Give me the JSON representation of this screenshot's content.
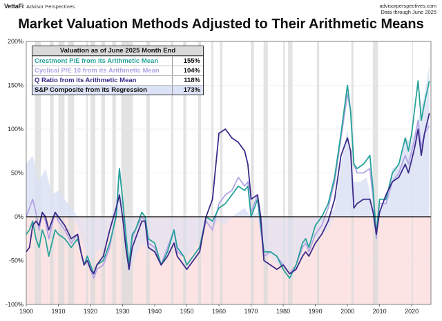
{
  "header": {
    "brand": "VettaFi",
    "brand_sub": "Advisor Perspectives",
    "source_line1": "advisorperspectives.com",
    "source_line2": "Data through June 2025"
  },
  "legend": {
    "header": "Valuation as of June 2025 Month End",
    "rows": [
      {
        "label": "Crestmont P/E from its Arithmetic Mean",
        "value": "155%",
        "color": "#26a39a"
      },
      {
        "label": "Cyclical P/E 10 from its Arithmetic Mean",
        "value": "104%",
        "color": "#b3a3e6"
      },
      {
        "label": "Q Ratio from its Arithmetic Mean",
        "value": "118%",
        "color": "#3b2a8a"
      },
      {
        "label": "S&P Composite from its Regression",
        "value": "173%",
        "color": "#111111"
      }
    ]
  },
  "colors": {
    "crestmont": "#26a39a",
    "pe10": "#b3a3e6",
    "q": "#3b2a8a",
    "composite_pos": "#dbe2f5",
    "composite_neg": "#fce4e4",
    "recession": "#d9d9d9",
    "zero_line": "#000000"
  },
  "chart_data": {
    "type": "line",
    "title": "Market Valuation Methods Adjusted to Their Arithmetic Means",
    "xlabel": "",
    "ylabel": "",
    "xlim": [
      1900,
      2026
    ],
    "ylim": [
      -100,
      200
    ],
    "x_ticks": [
      1900,
      1910,
      1920,
      1930,
      1940,
      1950,
      1960,
      1970,
      1980,
      1990,
      2000,
      2010,
      2020
    ],
    "y_ticks": [
      -100,
      -50,
      0,
      50,
      100,
      150,
      200
    ],
    "y_tick_labels": [
      "-100%",
      "-50%",
      "0%",
      "50%",
      "100%",
      "150%",
      "200%"
    ],
    "recessions": [
      [
        1902.7,
        1904.6
      ],
      [
        1907.4,
        1908.5
      ],
      [
        1910.0,
        1911.9
      ],
      [
        1913.0,
        1914.9
      ],
      [
        1918.7,
        1919.2
      ],
      [
        1920.0,
        1921.5
      ],
      [
        1923.4,
        1924.5
      ],
      [
        1926.8,
        1927.9
      ],
      [
        1929.6,
        1933.2
      ],
      [
        1937.4,
        1938.5
      ],
      [
        1945.1,
        1945.8
      ],
      [
        1948.9,
        1949.8
      ],
      [
        1953.5,
        1954.4
      ],
      [
        1957.6,
        1958.3
      ],
      [
        1960.3,
        1961.1
      ],
      [
        1969.9,
        1970.9
      ],
      [
        1973.9,
        1975.2
      ],
      [
        1980.0,
        1980.5
      ],
      [
        1981.5,
        1982.9
      ],
      [
        1990.5,
        1991.2
      ],
      [
        2001.2,
        2001.9
      ],
      [
        2007.9,
        2009.5
      ],
      [
        2020.1,
        2020.4
      ]
    ],
    "series": [
      {
        "name": "S&P Composite from its Regression",
        "kind": "area",
        "x": [
          1900,
          1902,
          1904,
          1906,
          1908,
          1910,
          1912,
          1914,
          1916,
          1918,
          1920,
          1922,
          1924,
          1926,
          1928,
          1929,
          1930,
          1932,
          1934,
          1936,
          1938,
          1940,
          1942,
          1944,
          1946,
          1948,
          1950,
          1952,
          1954,
          1956,
          1958,
          1960,
          1962,
          1964,
          1966,
          1968,
          1970,
          1972,
          1974,
          1976,
          1978,
          1980,
          1982,
          1984,
          1986,
          1988,
          1990,
          1992,
          1994,
          1996,
          1998,
          2000,
          2002,
          2004,
          2006,
          2008,
          2009,
          2010,
          2012,
          2014,
          2016,
          2018,
          2020,
          2022,
          2024,
          2025.5
        ],
        "values": [
          60,
          70,
          40,
          55,
          25,
          30,
          20,
          10,
          -10,
          -35,
          -50,
          -40,
          -35,
          -20,
          10,
          40,
          -10,
          -65,
          -45,
          -30,
          -35,
          -40,
          -55,
          -40,
          -30,
          -45,
          -45,
          -40,
          -25,
          -5,
          -10,
          -5,
          -10,
          0,
          5,
          10,
          -5,
          5,
          -40,
          -45,
          -55,
          -55,
          -60,
          -50,
          -35,
          -30,
          -25,
          -20,
          -15,
          10,
          60,
          100,
          40,
          40,
          45,
          10,
          -20,
          5,
          20,
          55,
          60,
          90,
          85,
          110,
          140,
          173
        ]
      },
      {
        "name": "Cyclical P/E 10 from its Arithmetic Mean",
        "kind": "line",
        "x": [
          1900,
          1901,
          1902,
          1903,
          1904,
          1905,
          1906,
          1907,
          1908,
          1909,
          1910,
          1912,
          1914,
          1916,
          1917,
          1918,
          1919,
          1920,
          1921,
          1922,
          1924,
          1926,
          1928,
          1929,
          1930,
          1931,
          1932,
          1933,
          1934,
          1936,
          1937,
          1938,
          1940,
          1942,
          1944,
          1946,
          1947,
          1949,
          1950,
          1952,
          1954,
          1956,
          1958,
          1960,
          1962,
          1964,
          1966,
          1968,
          1969,
          1970,
          1972,
          1973,
          1974,
          1976,
          1978,
          1980,
          1982,
          1984,
          1986,
          1987,
          1988,
          1990,
          1992,
          1994,
          1996,
          1998,
          2000,
          2001,
          2002,
          2003,
          2005,
          2007,
          2008,
          2009,
          2010,
          2012,
          2014,
          2016,
          2018,
          2019,
          2020,
          2021,
          2022,
          2023,
          2024,
          2025.5
        ],
        "values": [
          0,
          10,
          20,
          5,
          -15,
          5,
          -5,
          -25,
          -10,
          5,
          -5,
          -15,
          -30,
          -20,
          -40,
          -55,
          -45,
          -60,
          -70,
          -60,
          -55,
          -35,
          5,
          55,
          20,
          -20,
          -60,
          -25,
          -15,
          0,
          -5,
          -30,
          -35,
          -55,
          -35,
          -15,
          -40,
          -45,
          -55,
          -45,
          -35,
          -5,
          -15,
          15,
          25,
          30,
          45,
          35,
          40,
          5,
          25,
          -15,
          -45,
          -40,
          -45,
          -55,
          -65,
          -55,
          -35,
          -30,
          -40,
          -20,
          -10,
          10,
          40,
          90,
          140,
          120,
          60,
          50,
          50,
          55,
          20,
          -25,
          15,
          15,
          40,
          50,
          70,
          60,
          75,
          90,
          110,
          80,
          95,
          104
        ]
      },
      {
        "name": "Crestmont P/E from its Arithmetic Mean",
        "kind": "line",
        "x": [
          1900,
          1901,
          1902,
          1903,
          1904,
          1905,
          1906,
          1907,
          1908,
          1909,
          1910,
          1912,
          1914,
          1916,
          1917,
          1918,
          1919,
          1920,
          1921,
          1922,
          1924,
          1926,
          1928,
          1929,
          1930,
          1931,
          1932,
          1933,
          1934,
          1936,
          1937,
          1938,
          1940,
          1942,
          1944,
          1946,
          1947,
          1949,
          1950,
          1952,
          1954,
          1956,
          1958,
          1960,
          1962,
          1964,
          1966,
          1968,
          1969,
          1970,
          1972,
          1973,
          1974,
          1976,
          1978,
          1980,
          1982,
          1984,
          1986,
          1987,
          1988,
          1990,
          1992,
          1994,
          1996,
          1998,
          2000,
          2001,
          2002,
          2003,
          2005,
          2007,
          2008,
          2009,
          2010,
          2012,
          2014,
          2016,
          2018,
          2019,
          2020,
          2021,
          2022,
          2023,
          2024,
          2025.5
        ],
        "values": [
          -20,
          -15,
          -5,
          -25,
          -35,
          -15,
          -25,
          -45,
          -30,
          -15,
          -20,
          -25,
          -35,
          -25,
          -40,
          -55,
          -45,
          -55,
          -65,
          -55,
          -50,
          -30,
          0,
          55,
          20,
          -20,
          -55,
          -20,
          -15,
          5,
          0,
          -25,
          -30,
          -55,
          -40,
          -15,
          -35,
          -45,
          -55,
          -45,
          -35,
          0,
          -5,
          10,
          15,
          25,
          35,
          30,
          35,
          0,
          20,
          -10,
          -40,
          -40,
          -45,
          -60,
          -70,
          -55,
          -30,
          -25,
          -35,
          -10,
          0,
          15,
          45,
          95,
          150,
          120,
          60,
          55,
          60,
          70,
          30,
          -20,
          20,
          20,
          50,
          60,
          90,
          75,
          95,
          125,
          155,
          110,
          130,
          155
        ]
      },
      {
        "name": "Q Ratio from its Arithmetic Mean",
        "kind": "line",
        "x": [
          1900,
          1901,
          1902,
          1903,
          1904,
          1905,
          1906,
          1907,
          1908,
          1909,
          1910,
          1912,
          1914,
          1916,
          1917,
          1918,
          1919,
          1920,
          1921,
          1922,
          1924,
          1926,
          1928,
          1929,
          1930,
          1931,
          1932,
          1933,
          1934,
          1936,
          1937,
          1938,
          1940,
          1942,
          1944,
          1946,
          1947,
          1949,
          1950,
          1952,
          1954,
          1956,
          1958,
          1960,
          1962,
          1964,
          1966,
          1968,
          1969,
          1970,
          1972,
          1973,
          1974,
          1976,
          1978,
          1980,
          1982,
          1984,
          1986,
          1987,
          1988,
          1990,
          1992,
          1994,
          1996,
          1998,
          2000,
          2001,
          2002,
          2003,
          2005,
          2007,
          2008,
          2009,
          2010,
          2012,
          2014,
          2016,
          2018,
          2019,
          2020,
          2021,
          2022,
          2023,
          2024,
          2025.5
        ],
        "values": [
          -40,
          -35,
          -10,
          -5,
          -10,
          5,
          0,
          -15,
          -5,
          5,
          0,
          -10,
          -25,
          -20,
          -40,
          -55,
          -50,
          -60,
          -65,
          -55,
          -45,
          -15,
          10,
          25,
          0,
          -35,
          -60,
          -35,
          -25,
          -5,
          -5,
          -35,
          -40,
          -55,
          -45,
          -30,
          -45,
          -55,
          -60,
          -50,
          -40,
          0,
          20,
          95,
          100,
          90,
          85,
          75,
          60,
          20,
          25,
          0,
          -50,
          -55,
          -60,
          -55,
          -65,
          -60,
          -45,
          -40,
          -45,
          -30,
          -20,
          -5,
          20,
          70,
          90,
          75,
          10,
          15,
          20,
          20,
          5,
          -20,
          5,
          25,
          40,
          45,
          60,
          50,
          65,
          80,
          100,
          70,
          95,
          118
        ]
      }
    ]
  }
}
